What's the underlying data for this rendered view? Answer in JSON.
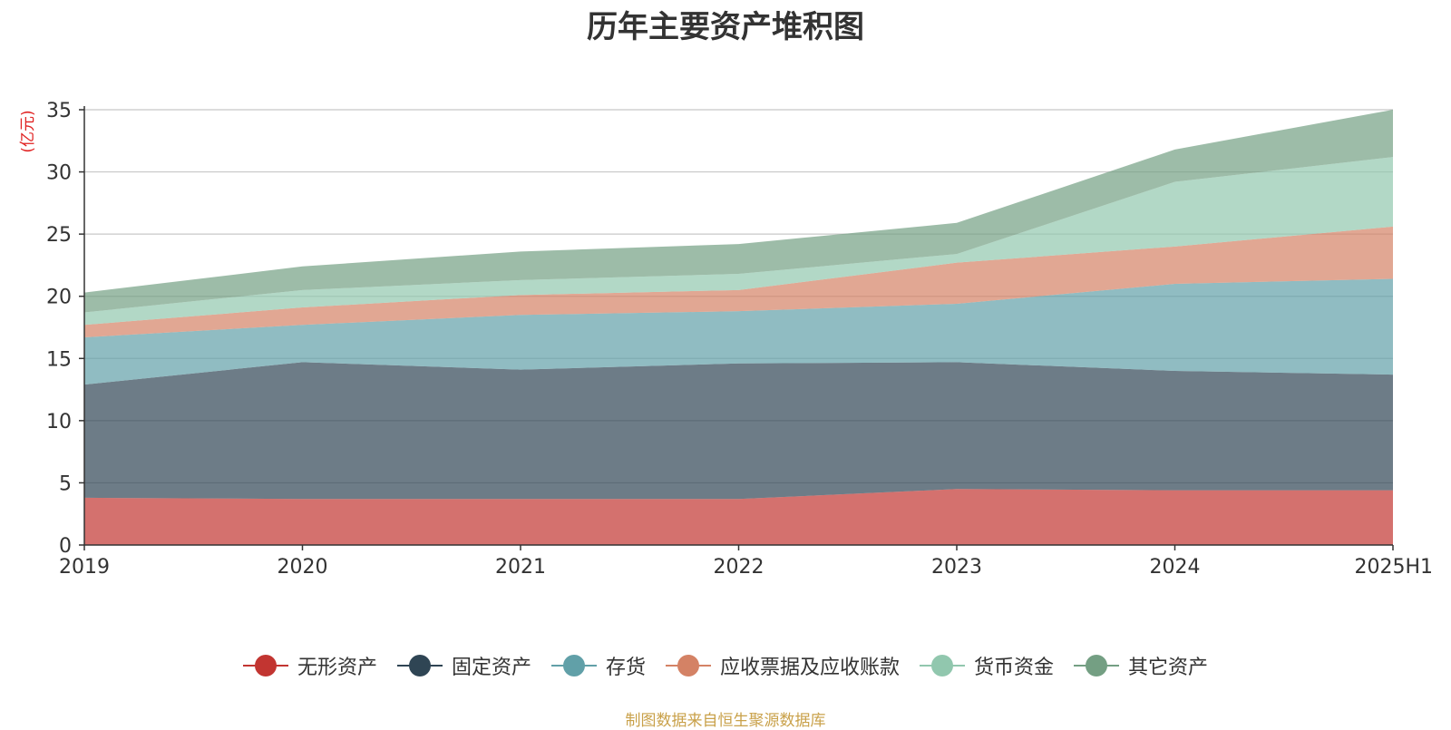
{
  "chart_data": {
    "type": "area",
    "stacked": true,
    "title": "历年主要资产堆积图",
    "ylabel": "亿元",
    "ylim": [
      0,
      35
    ],
    "yticks": [
      0,
      5,
      10,
      15,
      20,
      25,
      30,
      35
    ],
    "grid": true,
    "legend_position": "bottom",
    "categories": [
      "2019",
      "2020",
      "2021",
      "2022",
      "2023",
      "2024",
      "2025H1"
    ],
    "series": [
      {
        "name": "无形资产",
        "color": "#c23531",
        "values": [
          3.8,
          3.7,
          3.7,
          3.7,
          4.5,
          4.4,
          4.4
        ]
      },
      {
        "name": "固定资产",
        "color": "#2f4554",
        "values": [
          9.1,
          11.0,
          10.4,
          10.9,
          10.2,
          9.6,
          9.3
        ]
      },
      {
        "name": "存货",
        "color": "#61a0a8",
        "values": [
          3.8,
          3.0,
          4.4,
          4.2,
          4.7,
          7.0,
          7.7
        ]
      },
      {
        "name": "应收票据及应收账款",
        "color": "#d48265",
        "values": [
          1.0,
          1.4,
          1.6,
          1.7,
          3.3,
          3.0,
          4.2
        ]
      },
      {
        "name": "货币资金",
        "color": "#91c7ae",
        "values": [
          1.0,
          1.4,
          1.2,
          1.3,
          0.7,
          5.2,
          5.6
        ]
      },
      {
        "name": "其它资产",
        "color": "#749f83",
        "values": [
          1.6,
          1.9,
          2.3,
          2.4,
          2.5,
          2.6,
          3.8
        ]
      }
    ]
  },
  "title": "历年主要资产堆积图",
  "y_unit_label": "(亿元)",
  "source_note": "制图数据来自恒生聚源数据库"
}
